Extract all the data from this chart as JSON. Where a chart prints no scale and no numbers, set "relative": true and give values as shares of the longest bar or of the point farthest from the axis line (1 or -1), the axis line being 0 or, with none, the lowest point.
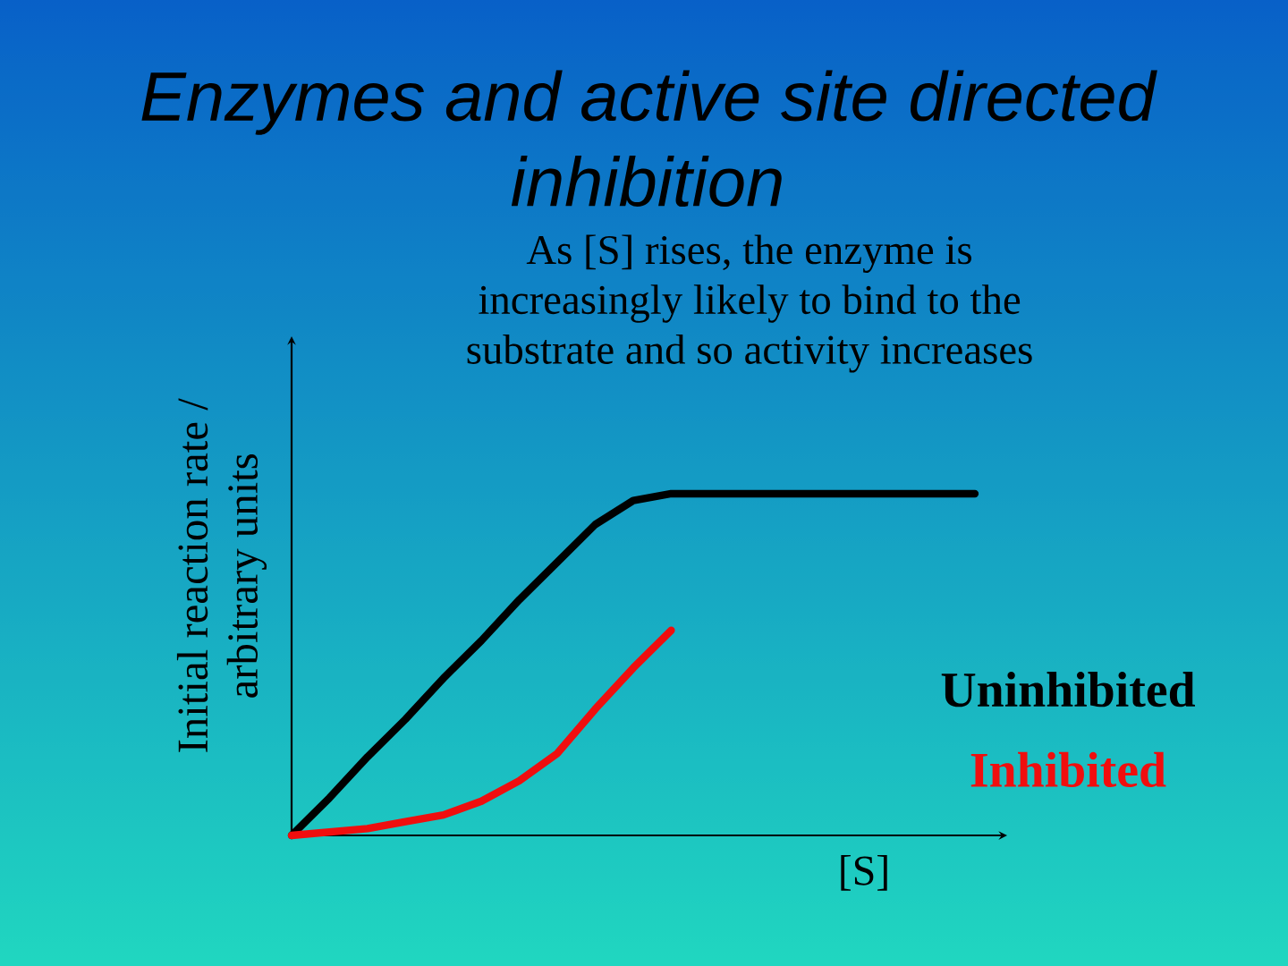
{
  "chart_data": {
    "type": "line",
    "title": "Enzymes and active site directed inhibition",
    "xlabel": "[S]",
    "ylabel": "Initial reaction rate / arbitrary units",
    "annotations": [
      "As [S] rises, the enzyme is increasingly likely to bind to the substrate and so activity increases"
    ],
    "relative": true,
    "categories": [
      null,
      null,
      null,
      null,
      null,
      null,
      null,
      null,
      null,
      null,
      null,
      null,
      null,
      null,
      null,
      null,
      null,
      null,
      null
    ],
    "series": [
      {
        "name": "Uninhibited",
        "color": "#000000",
        "values": [
          0,
          0.11,
          0.23,
          0.34,
          0.46,
          0.57,
          0.69,
          0.8,
          0.91,
          0.98,
          1,
          1,
          1,
          1,
          1,
          1,
          1,
          1,
          1
        ]
      },
      {
        "name": "Inhibited",
        "color": "#f00e0e",
        "values": [
          0,
          0.01,
          0.02,
          0.04,
          0.06,
          0.1,
          0.16,
          0.24,
          0.37,
          0.49,
          0.6,
          null,
          null,
          null,
          null,
          null,
          null,
          null,
          null
        ]
      }
    ],
    "legend": "bottom right",
    "marker": "none",
    "line_style": "solid"
  }
}
